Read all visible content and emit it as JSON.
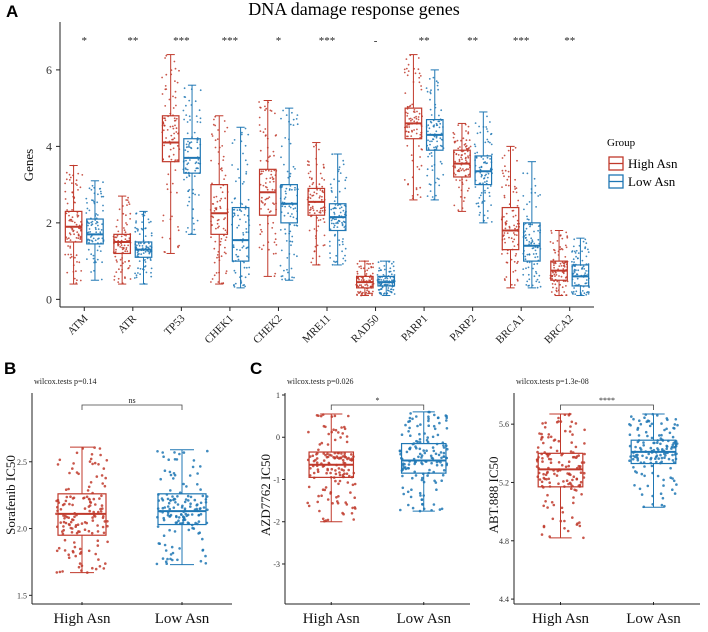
{
  "panel_labels": {
    "a": "A",
    "b": "B",
    "c": "C"
  },
  "legend": {
    "title": "Group",
    "items": [
      {
        "label": "High Asn",
        "color": "#C0392B"
      },
      {
        "label": "Low Asn",
        "color": "#1F77B4"
      }
    ]
  },
  "chart_data": [
    {
      "id": "A",
      "type": "boxplot",
      "title": "DNA damage response genes",
      "xlabel": "",
      "ylabel": "Genes",
      "ylim": [
        -0.2,
        7.2
      ],
      "yticks": [
        "0",
        "2",
        "4",
        "6"
      ],
      "categories": [
        "ATM",
        "ATR",
        "TP53",
        "CHEK1",
        "CHEK2",
        "MRE11",
        "RAD50",
        "PARP1",
        "PARP2",
        "BRCA1",
        "BRCA2"
      ],
      "significance": [
        "*",
        "**",
        "***",
        "***",
        "*",
        "***",
        "-",
        "**",
        "**",
        "***",
        "**"
      ],
      "series": [
        {
          "name": "High Asn",
          "color": "#C0392B",
          "boxes": [
            {
              "min": 0.4,
              "q1": 1.5,
              "median": 1.9,
              "q3": 2.3,
              "max": 3.5
            },
            {
              "min": 0.4,
              "q1": 1.2,
              "median": 1.5,
              "q3": 1.7,
              "max": 2.7
            },
            {
              "min": 1.2,
              "q1": 3.6,
              "median": 4.1,
              "q3": 4.8,
              "max": 6.4
            },
            {
              "min": 0.4,
              "q1": 1.7,
              "median": 2.25,
              "q3": 3.0,
              "max": 4.8
            },
            {
              "min": 0.6,
              "q1": 2.2,
              "median": 2.8,
              "q3": 3.4,
              "max": 5.2
            },
            {
              "min": 0.9,
              "q1": 2.2,
              "median": 2.55,
              "q3": 2.9,
              "max": 4.1
            },
            {
              "min": 0.1,
              "q1": 0.3,
              "median": 0.45,
              "q3": 0.6,
              "max": 1.0
            },
            {
              "min": 2.6,
              "q1": 4.2,
              "median": 4.6,
              "q3": 5.0,
              "max": 6.4
            },
            {
              "min": 2.3,
              "q1": 3.2,
              "median": 3.55,
              "q3": 3.9,
              "max": 4.6
            },
            {
              "min": 0.3,
              "q1": 1.3,
              "median": 1.8,
              "q3": 2.4,
              "max": 4.0
            },
            {
              "min": 0.1,
              "q1": 0.5,
              "median": 0.75,
              "q3": 1.0,
              "max": 1.8
            }
          ]
        },
        {
          "name": "Low Asn",
          "color": "#1F77B4",
          "boxes": [
            {
              "min": 0.5,
              "q1": 1.45,
              "median": 1.7,
              "q3": 2.1,
              "max": 3.1
            },
            {
              "min": 0.4,
              "q1": 1.1,
              "median": 1.3,
              "q3": 1.5,
              "max": 2.3
            },
            {
              "min": 1.7,
              "q1": 3.3,
              "median": 3.7,
              "q3": 4.2,
              "max": 5.6
            },
            {
              "min": 0.3,
              "q1": 1.0,
              "median": 1.55,
              "q3": 2.4,
              "max": 4.5
            },
            {
              "min": 0.5,
              "q1": 2.0,
              "median": 2.5,
              "q3": 3.0,
              "max": 5.0
            },
            {
              "min": 0.9,
              "q1": 1.8,
              "median": 2.15,
              "q3": 2.5,
              "max": 3.8
            },
            {
              "min": 0.1,
              "q1": 0.35,
              "median": 0.45,
              "q3": 0.6,
              "max": 1.0
            },
            {
              "min": 2.6,
              "q1": 3.9,
              "median": 4.3,
              "q3": 4.7,
              "max": 6.0
            },
            {
              "min": 2.0,
              "q1": 3.0,
              "median": 3.35,
              "q3": 3.75,
              "max": 4.9
            },
            {
              "min": 0.3,
              "q1": 1.0,
              "median": 1.4,
              "q3": 2.0,
              "max": 3.6
            },
            {
              "min": 0.1,
              "q1": 0.35,
              "median": 0.6,
              "q3": 0.9,
              "max": 1.6
            }
          ]
        }
      ]
    },
    {
      "id": "B",
      "type": "boxplot",
      "title": "",
      "test_label": "wilcox.tests p=0.14",
      "significance": "ns",
      "ylabel": "Sorafenib IC50",
      "ylim": [
        1.45,
        3.0
      ],
      "yticks": [
        "1.5",
        "2.0",
        "2.5"
      ],
      "categories": [
        "High Asn",
        "Low Asn"
      ],
      "colors": [
        "#C0392B",
        "#1F77B4"
      ],
      "boxes": [
        {
          "min": 1.67,
          "q1": 1.95,
          "median": 2.11,
          "q3": 2.26,
          "max": 2.61
        },
        {
          "min": 1.73,
          "q1": 2.03,
          "median": 2.13,
          "q3": 2.26,
          "max": 2.59
        }
      ]
    },
    {
      "id": "C1",
      "type": "boxplot",
      "title": "",
      "test_label": "wilcox.tests p=0.026",
      "significance": "*",
      "ylabel": "AZD7762 IC50",
      "ylim": [
        -3.9,
        1.0
      ],
      "yticks": [
        "-3",
        "-2",
        "-1",
        "0",
        "1"
      ],
      "categories": [
        "High Asn",
        "Low Asn"
      ],
      "colors": [
        "#C0392B",
        "#1F77B4"
      ],
      "boxes": [
        {
          "min": -2.0,
          "q1": -0.95,
          "median": -0.65,
          "q3": -0.35,
          "max": 0.55
        },
        {
          "min": -1.75,
          "q1": -0.85,
          "median": -0.55,
          "q3": -0.15,
          "max": 0.6
        }
      ]
    },
    {
      "id": "C2",
      "type": "boxplot",
      "title": "",
      "test_label": "wilcox.tests p=1.3e-08",
      "significance": "****",
      "ylabel": "ABT.888 IC50",
      "ylim": [
        4.38,
        5.8
      ],
      "yticks": [
        "4.4",
        "4.8",
        "5.2",
        "5.6"
      ],
      "categories": [
        "High Asn",
        "Low Asn"
      ],
      "colors": [
        "#C0392B",
        "#1F77B4"
      ],
      "boxes": [
        {
          "min": 4.82,
          "q1": 5.17,
          "median": 5.29,
          "q3": 5.4,
          "max": 5.67
        },
        {
          "min": 5.03,
          "q1": 5.33,
          "median": 5.41,
          "q3": 5.49,
          "max": 5.67
        }
      ]
    }
  ]
}
